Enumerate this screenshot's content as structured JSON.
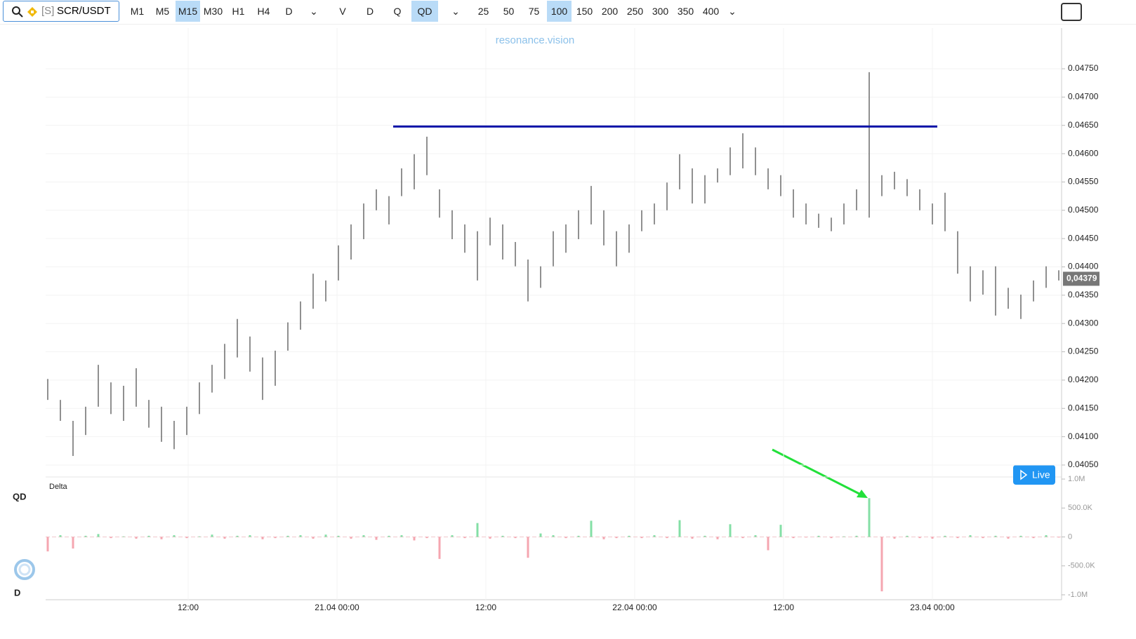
{
  "toolbar": {
    "exchange_tag": "[S]",
    "symbol": "SCR/USDT",
    "timeframes": [
      {
        "label": "M1"
      },
      {
        "label": "M5"
      },
      {
        "label": "M15",
        "active": true
      },
      {
        "label": "M30"
      },
      {
        "label": "H1"
      },
      {
        "label": "H4"
      },
      {
        "label": "D"
      }
    ],
    "chart_types": [
      {
        "label": "V"
      },
      {
        "label": "D"
      },
      {
        "label": "Q"
      },
      {
        "label": "QD",
        "active": true
      }
    ],
    "depths": [
      {
        "label": "25"
      },
      {
        "label": "50"
      },
      {
        "label": "75"
      },
      {
        "label": "100",
        "active": true
      },
      {
        "label": "150"
      },
      {
        "label": "200"
      },
      {
        "label": "250"
      },
      {
        "label": "300"
      },
      {
        "label": "350"
      },
      {
        "label": "400"
      }
    ]
  },
  "watermark": "resonance.vision",
  "live_button": "Live",
  "panel_labels": {
    "qd": "QD",
    "d": "D"
  },
  "chart_data": [
    {
      "type": "hlbar",
      "color": "#555555",
      "grid": true,
      "low": [
        0.04165,
        0.04128,
        0.04066,
        0.04103,
        0.04153,
        0.0414,
        0.04128,
        0.04153,
        0.04116,
        0.04091,
        0.04078,
        0.04103,
        0.0414,
        0.04178,
        0.04202,
        0.0424,
        0.04215,
        0.04165,
        0.0419,
        0.04252,
        0.04289,
        0.04326,
        0.04339,
        0.04376,
        0.04413,
        0.04449,
        0.045,
        0.04475,
        0.04525,
        0.04537,
        0.04562,
        0.04487,
        0.04449,
        0.04425,
        0.04376,
        0.04438,
        0.04413,
        0.04401,
        0.04339,
        0.04363,
        0.04401,
        0.04425,
        0.04449,
        0.04475,
        0.04438,
        0.04401,
        0.04425,
        0.04463,
        0.04475,
        0.045,
        0.04537,
        0.04512,
        0.04512,
        0.04549,
        0.04562,
        0.04574,
        0.04562,
        0.04537,
        0.04525,
        0.04487,
        0.04475,
        0.04469,
        0.04463,
        0.04475,
        0.045,
        0.04487,
        0.04525,
        0.04537,
        0.04525,
        0.045,
        0.04475,
        0.04463,
        0.04388,
        0.04339,
        0.04351,
        0.04314,
        0.04326,
        0.04308,
        0.04339,
        0.04363,
        0.04376
      ],
      "high": [
        0.04202,
        0.04165,
        0.04128,
        0.04153,
        0.04227,
        0.04196,
        0.0419,
        0.04221,
        0.04165,
        0.04153,
        0.04128,
        0.04153,
        0.04196,
        0.04227,
        0.04264,
        0.04308,
        0.04277,
        0.0424,
        0.04252,
        0.04302,
        0.04339,
        0.04388,
        0.04376,
        0.04438,
        0.04475,
        0.04512,
        0.04537,
        0.04525,
        0.04574,
        0.04599,
        0.0463,
        0.04537,
        0.045,
        0.04475,
        0.04463,
        0.04487,
        0.04475,
        0.04444,
        0.04413,
        0.04401,
        0.04463,
        0.04475,
        0.045,
        0.04543,
        0.045,
        0.04463,
        0.04475,
        0.045,
        0.04512,
        0.04549,
        0.04599,
        0.04574,
        0.04562,
        0.04574,
        0.04611,
        0.04636,
        0.04611,
        0.04574,
        0.04562,
        0.04537,
        0.04512,
        0.04494,
        0.04487,
        0.04512,
        0.04537,
        0.04744,
        0.04562,
        0.04568,
        0.04555,
        0.04537,
        0.04512,
        0.04531,
        0.04463,
        0.04401,
        0.04394,
        0.04401,
        0.04363,
        0.04351,
        0.04376,
        0.04401,
        0.04394
      ],
      "level_line": {
        "value": 0.04648,
        "color": "#0b14a8"
      },
      "last_price": {
        "value": 0.04379,
        "label": "0,04379"
      },
      "ylim": [
        0.0403,
        0.0481
      ],
      "yticks": [
        {
          "value": 0.0405,
          "label": "0.04050"
        },
        {
          "value": 0.041,
          "label": "0.04100"
        },
        {
          "value": 0.0415,
          "label": "0.04150"
        },
        {
          "value": 0.042,
          "label": "0.04200"
        },
        {
          "value": 0.0425,
          "label": "0.04250"
        },
        {
          "value": 0.043,
          "label": "0.04300"
        },
        {
          "value": 0.0435,
          "label": "0.04350"
        },
        {
          "value": 0.044,
          "label": "0.04400"
        },
        {
          "value": 0.0445,
          "label": "0.04450"
        },
        {
          "value": 0.045,
          "label": "0.04500"
        },
        {
          "value": 0.0455,
          "label": "0.04550"
        },
        {
          "value": 0.046,
          "label": "0.04600"
        },
        {
          "value": 0.0465,
          "label": "0.04650"
        },
        {
          "value": 0.047,
          "label": "0.04700"
        },
        {
          "value": 0.0475,
          "label": "0.04750"
        }
      ],
      "xlabels": [
        "12:00",
        "21.04 00:00",
        "12:00",
        "22.04 00:00",
        "12:00",
        "23.04 00:00"
      ]
    },
    {
      "type": "bar",
      "title": "Delta",
      "up_color": "#84dfa6",
      "down_color": "#f5a6b0",
      "values": [
        -250000,
        30000,
        -200000,
        20000,
        50000,
        -20000,
        10000,
        -30000,
        20000,
        -40000,
        30000,
        -20000,
        10000,
        40000,
        -30000,
        20000,
        30000,
        -40000,
        -20000,
        20000,
        30000,
        -30000,
        40000,
        20000,
        -30000,
        30000,
        -50000,
        20000,
        30000,
        -60000,
        -20000,
        -380000,
        30000,
        -20000,
        240000,
        -30000,
        20000,
        -20000,
        -360000,
        60000,
        30000,
        -20000,
        20000,
        280000,
        -40000,
        -20000,
        20000,
        -20000,
        30000,
        -20000,
        290000,
        -30000,
        20000,
        -40000,
        220000,
        -20000,
        30000,
        -230000,
        210000,
        -20000,
        -10000,
        20000,
        -20000,
        10000,
        20000,
        670000,
        -940000,
        -30000,
        20000,
        -20000,
        -30000,
        20000,
        -20000,
        30000,
        -20000,
        20000,
        -30000,
        20000,
        -20000,
        30000,
        -10000
      ],
      "ylim": [
        -1000000,
        1000000
      ],
      "yticks": [
        {
          "value": 1000000,
          "label": "1.0M"
        },
        {
          "value": 500000,
          "label": "500.0K"
        },
        0,
        {
          "value": -500000,
          "label": "-500.0K"
        },
        {
          "value": -1000000,
          "label": "-1.0M"
        }
      ]
    }
  ]
}
